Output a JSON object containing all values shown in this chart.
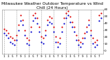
{
  "title": "Milwaukee Weather Outdoor Temperature vs Wind Chill (24 Hours)",
  "title_fontsize": 4.2,
  "bg_color": "#ffffff",
  "grid_color": "#999999",
  "temp_color": "#dd0000",
  "windchill_color": "#0000cc",
  "black_color": "#000000",
  "hours": [
    1,
    2,
    3,
    4,
    5,
    6,
    7,
    8,
    9,
    10,
    11,
    12,
    13,
    14,
    15,
    16,
    17,
    18,
    19,
    20,
    21,
    22,
    23,
    24,
    25,
    26,
    27,
    28,
    29,
    30,
    31,
    32,
    33,
    34,
    35,
    36,
    37,
    38,
    39,
    40,
    41,
    42,
    43,
    44,
    45,
    46,
    47,
    48
  ],
  "temp": [
    32,
    30,
    25,
    20,
    18,
    15,
    22,
    38,
    52,
    45,
    30,
    18,
    15,
    35,
    52,
    55,
    48,
    35,
    20,
    18,
    30,
    45,
    50,
    48,
    35,
    20,
    12,
    18,
    35,
    48,
    55,
    58,
    50,
    42,
    35,
    22,
    15,
    12,
    18,
    25,
    35,
    45,
    30,
    18,
    12,
    15,
    52,
    55
  ],
  "windchill": [
    25,
    22,
    18,
    12,
    10,
    8,
    15,
    30,
    44,
    38,
    22,
    10,
    8,
    28,
    44,
    48,
    40,
    28,
    12,
    10,
    22,
    38,
    42,
    40,
    28,
    12,
    5,
    10,
    28,
    40,
    48,
    52,
    42,
    35,
    28,
    15,
    8,
    5,
    10,
    18,
    28,
    38,
    22,
    10,
    5,
    8,
    44,
    48
  ],
  "ylim": [
    -5,
    60
  ],
  "xlim": [
    0,
    49
  ],
  "ytick_vals": [
    0,
    10,
    20,
    30,
    40,
    50,
    60
  ],
  "ytick_labels": [
    "0",
    "10",
    "20",
    "30",
    "40",
    "50",
    "60"
  ],
  "xtick_vals": [
    1,
    3,
    5,
    7,
    9,
    11,
    13,
    15,
    17,
    19,
    21,
    23,
    25,
    27,
    29,
    31,
    33,
    35,
    37,
    39,
    41,
    43,
    45,
    47
  ],
  "xtick_labels": [
    "1",
    "3",
    "5",
    "7",
    "9",
    "1",
    "3",
    "5",
    "7",
    "9",
    "1",
    "3",
    "5",
    "7",
    "9",
    "1",
    "3",
    "5",
    "7",
    "9",
    "1",
    "3",
    "5",
    "7"
  ],
  "marker_size": 2.5,
  "vline_positions": [
    1,
    7,
    13,
    19,
    25,
    31,
    37,
    43,
    49
  ]
}
